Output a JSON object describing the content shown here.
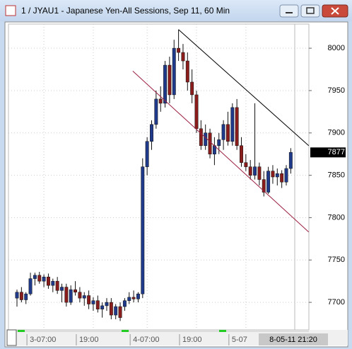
{
  "chart_data": {
    "type": "candlestick",
    "title": "1 / JYAU1 - Japanese Yen-All Sessions, Sep 11, 60 Min",
    "categories": [
      null,
      null,
      null,
      null,
      null,
      null,
      "3-07:00",
      null,
      null,
      null,
      null,
      null,
      null,
      null,
      null,
      null,
      null,
      "19:00",
      null,
      null,
      null,
      null,
      null,
      null,
      null,
      null,
      null,
      null,
      null,
      "4-07:00",
      null,
      null,
      null,
      null,
      null,
      null,
      null,
      null,
      null,
      null,
      "19:00",
      null,
      null,
      null,
      null,
      null,
      null,
      null,
      null,
      null,
      null,
      "5-07",
      null,
      null,
      null,
      null,
      null,
      null,
      null,
      null,
      null,
      null
    ],
    "open": [
      7705,
      7712,
      7703,
      7710,
      7728,
      7732,
      7725,
      7730,
      7720,
      7725,
      7714,
      7718,
      7700,
      7715,
      7712,
      7705,
      7708,
      7698,
      7702,
      7692,
      7696,
      7700,
      7685,
      7695,
      7695,
      7702,
      7706,
      7704,
      7710,
      7860,
      7890,
      7910,
      7940,
      7935,
      7980,
      7945,
      8000,
      7995,
      7985,
      7960,
      7945,
      7905,
      7885,
      7900,
      7875,
      7885,
      7892,
      7910,
      7890,
      7930,
      7885,
      7865,
      7860,
      7850,
      7860,
      7845,
      7830,
      7855,
      7848,
      7852,
      7842,
      7858
    ],
    "high": [
      7715,
      7718,
      7712,
      7735,
      7735,
      7736,
      7733,
      7734,
      7728,
      7730,
      7722,
      7722,
      7720,
      7725,
      7718,
      7712,
      7714,
      7706,
      7708,
      7700,
      7705,
      7705,
      7698,
      7700,
      7705,
      7712,
      7714,
      7712,
      7870,
      7895,
      7915,
      7950,
      7955,
      7985,
      7990,
      8010,
      8022,
      8005,
      7995,
      7975,
      7950,
      7915,
      7910,
      7905,
      7895,
      7900,
      7915,
      7925,
      7935,
      7940,
      7895,
      7875,
      7868,
      7935,
      7865,
      7855,
      7860,
      7862,
      7858,
      7856,
      7862,
      7882
    ],
    "low": [
      7695,
      7700,
      7698,
      7708,
      7720,
      7722,
      7718,
      7716,
      7712,
      7710,
      7700,
      7695,
      7697,
      7708,
      7700,
      7696,
      7692,
      7690,
      7688,
      7682,
      7690,
      7680,
      7680,
      7678,
      7690,
      7698,
      7700,
      7700,
      7705,
      7850,
      7880,
      7905,
      7925,
      7930,
      7935,
      7940,
      7985,
      7975,
      7950,
      7935,
      7900,
      7880,
      7880,
      7870,
      7862,
      7875,
      7880,
      7885,
      7885,
      7880,
      7860,
      7855,
      7845,
      7845,
      7838,
      7825,
      7828,
      7840,
      7838,
      7835,
      7838,
      7852
    ],
    "close": [
      7712,
      7703,
      7710,
      7728,
      7732,
      7725,
      7730,
      7720,
      7725,
      7714,
      7718,
      7700,
      7715,
      7712,
      7705,
      7708,
      7698,
      7702,
      7692,
      7696,
      7700,
      7685,
      7695,
      7682,
      7702,
      7706,
      7704,
      7710,
      7860,
      7890,
      7910,
      7940,
      7935,
      7980,
      7945,
      8000,
      7995,
      7985,
      7960,
      7945,
      7905,
      7885,
      7900,
      7875,
      7885,
      7892,
      7910,
      7890,
      7930,
      7885,
      7865,
      7860,
      7850,
      7860,
      7845,
      7830,
      7855,
      7848,
      7852,
      7842,
      7858,
      7877
    ],
    "up_color": "#1f3a8a",
    "down_color": "#8a1c1c",
    "trendlines": [
      {
        "x1": 36,
        "y1": 8022,
        "x2": 65,
        "y2": 7885,
        "color": "#000000"
      },
      {
        "x1": 25.8,
        "y1": 7973,
        "x2": 65,
        "y2": 7783,
        "color": "#9b2042"
      }
    ],
    "ylim": [
      7667.5,
      8028.5
    ],
    "yticks": [
      7700,
      7750,
      7800,
      7850,
      7900,
      7950,
      8000
    ],
    "grid": true,
    "cursor_label": "8-05-11 21:20"
  }
}
